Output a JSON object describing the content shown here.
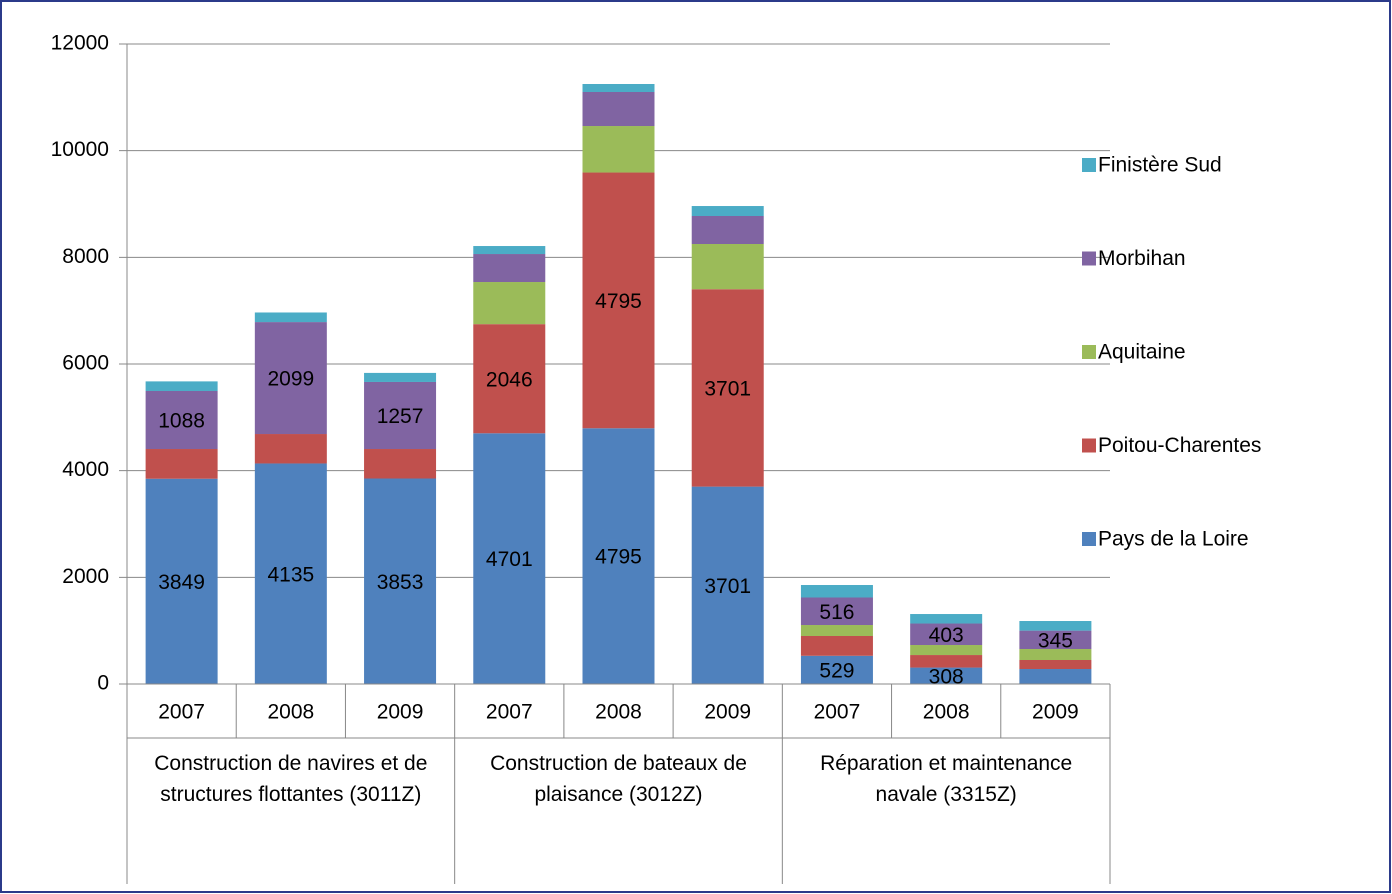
{
  "chart_data": {
    "type": "stacked_bar",
    "groups": [
      {
        "name": "Construction de navires et de structures flottantes (3011Z)",
        "categories": [
          "2007",
          "2008",
          "2009"
        ]
      },
      {
        "name": "Construction de bateaux de plaisance (3012Z)",
        "categories": [
          "2007",
          "2008",
          "2009"
        ]
      },
      {
        "name": "Réparation et maintenance navale (3315Z)",
        "categories": [
          "2007",
          "2008",
          "2009"
        ]
      }
    ],
    "series": [
      {
        "name": "Pays de la Loire",
        "color": "#4f81bd",
        "values": [
          3849,
          4135,
          3853,
          4701,
          4795,
          3701,
          529,
          308,
          281
        ],
        "show_labels": [
          true,
          true,
          true,
          true,
          true,
          true,
          true,
          true,
          false
        ]
      },
      {
        "name": "Poitou-Charentes",
        "color": "#c0504d",
        "values": [
          557,
          552,
          553,
          2046,
          4795,
          3701,
          371,
          235,
          169
        ],
        "show_labels": [
          false,
          false,
          false,
          true,
          true,
          true,
          false,
          false,
          false
        ]
      },
      {
        "name": "Aquitaine",
        "color": "#9bbb59",
        "values": [
          0,
          0,
          0,
          790,
          872,
          848,
          206,
          188,
          206
        ],
        "show_labels": [
          false,
          false,
          false,
          false,
          false,
          false,
          false,
          false,
          false
        ]
      },
      {
        "name": "Morbihan",
        "color": "#8064a2",
        "values": [
          1088,
          2099,
          1257,
          525,
          638,
          525,
          516,
          403,
          345
        ],
        "show_labels": [
          true,
          true,
          true,
          false,
          false,
          false,
          true,
          true,
          true
        ]
      },
      {
        "name": "Finistère Sud",
        "color": "#4bacc6",
        "values": [
          180,
          180,
          170,
          150,
          150,
          187,
          234,
          178,
          180
        ],
        "show_labels": [
          false,
          false,
          false,
          false,
          false,
          false,
          false,
          false,
          false
        ]
      }
    ],
    "ylim": [
      0,
      12000
    ],
    "yticks": [
      0,
      2000,
      4000,
      6000,
      8000,
      10000,
      12000
    ],
    "grid": true,
    "legend": "right"
  }
}
